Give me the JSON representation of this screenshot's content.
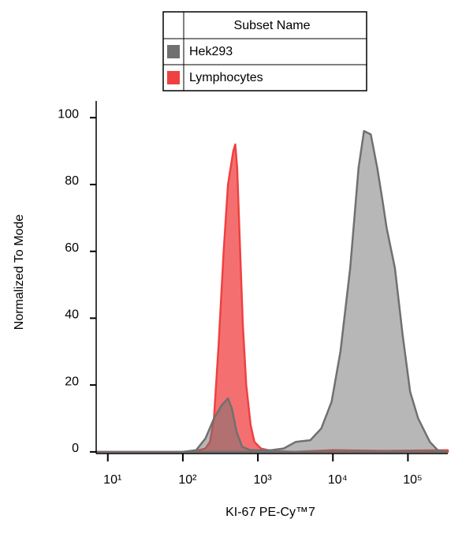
{
  "chart_data": {
    "type": "area",
    "legend_title": "Subset Name",
    "xlabel": "KI-67 PE-Cy™7",
    "ylabel": "Normalized To Mode",
    "xscale": "log",
    "xlim": [
      7,
      340000
    ],
    "ylim": [
      -0.5,
      105
    ],
    "xticks": [
      {
        "value": 10,
        "label": "10¹"
      },
      {
        "value": 100,
        "label": "10²"
      },
      {
        "value": 1000,
        "label": "10³"
      },
      {
        "value": 10000,
        "label": "10⁴"
      },
      {
        "value": 100000,
        "label": "10⁵"
      }
    ],
    "yticks": [
      0,
      20,
      40,
      60,
      80,
      100
    ],
    "series": [
      {
        "name": "Lymphocytes",
        "color": "#f04040",
        "x": [
          7,
          100,
          150,
          200,
          230,
          260,
          300,
          350,
          400,
          470,
          500,
          530,
          580,
          630,
          700,
          800,
          900,
          1100,
          1500,
          3000,
          10000,
          50000,
          340000
        ],
        "values": [
          0,
          0,
          0.3,
          1,
          3,
          10,
          32,
          60,
          80,
          90,
          92,
          85,
          60,
          38,
          20,
          8,
          3,
          1,
          0.3,
          0,
          0.5,
          0.3,
          0.5
        ]
      },
      {
        "name": "Hek293",
        "color": "#707070",
        "x": [
          7,
          100,
          150,
          200,
          260,
          330,
          400,
          450,
          520,
          620,
          800,
          1500,
          2200,
          3200,
          5000,
          7000,
          9600,
          12600,
          17000,
          22000,
          26000,
          32000,
          39000,
          46000,
          52000,
          67000,
          85000,
          107000,
          137000,
          196000,
          250000,
          340000
        ],
        "values": [
          0,
          0,
          0.5,
          4,
          10,
          14,
          16,
          13,
          6,
          1.5,
          0.5,
          0.5,
          1,
          3,
          3.5,
          7,
          15,
          30,
          55,
          85,
          96,
          95,
          85,
          75,
          67,
          55,
          35,
          18,
          10,
          3,
          0.5,
          0
        ]
      }
    ]
  }
}
